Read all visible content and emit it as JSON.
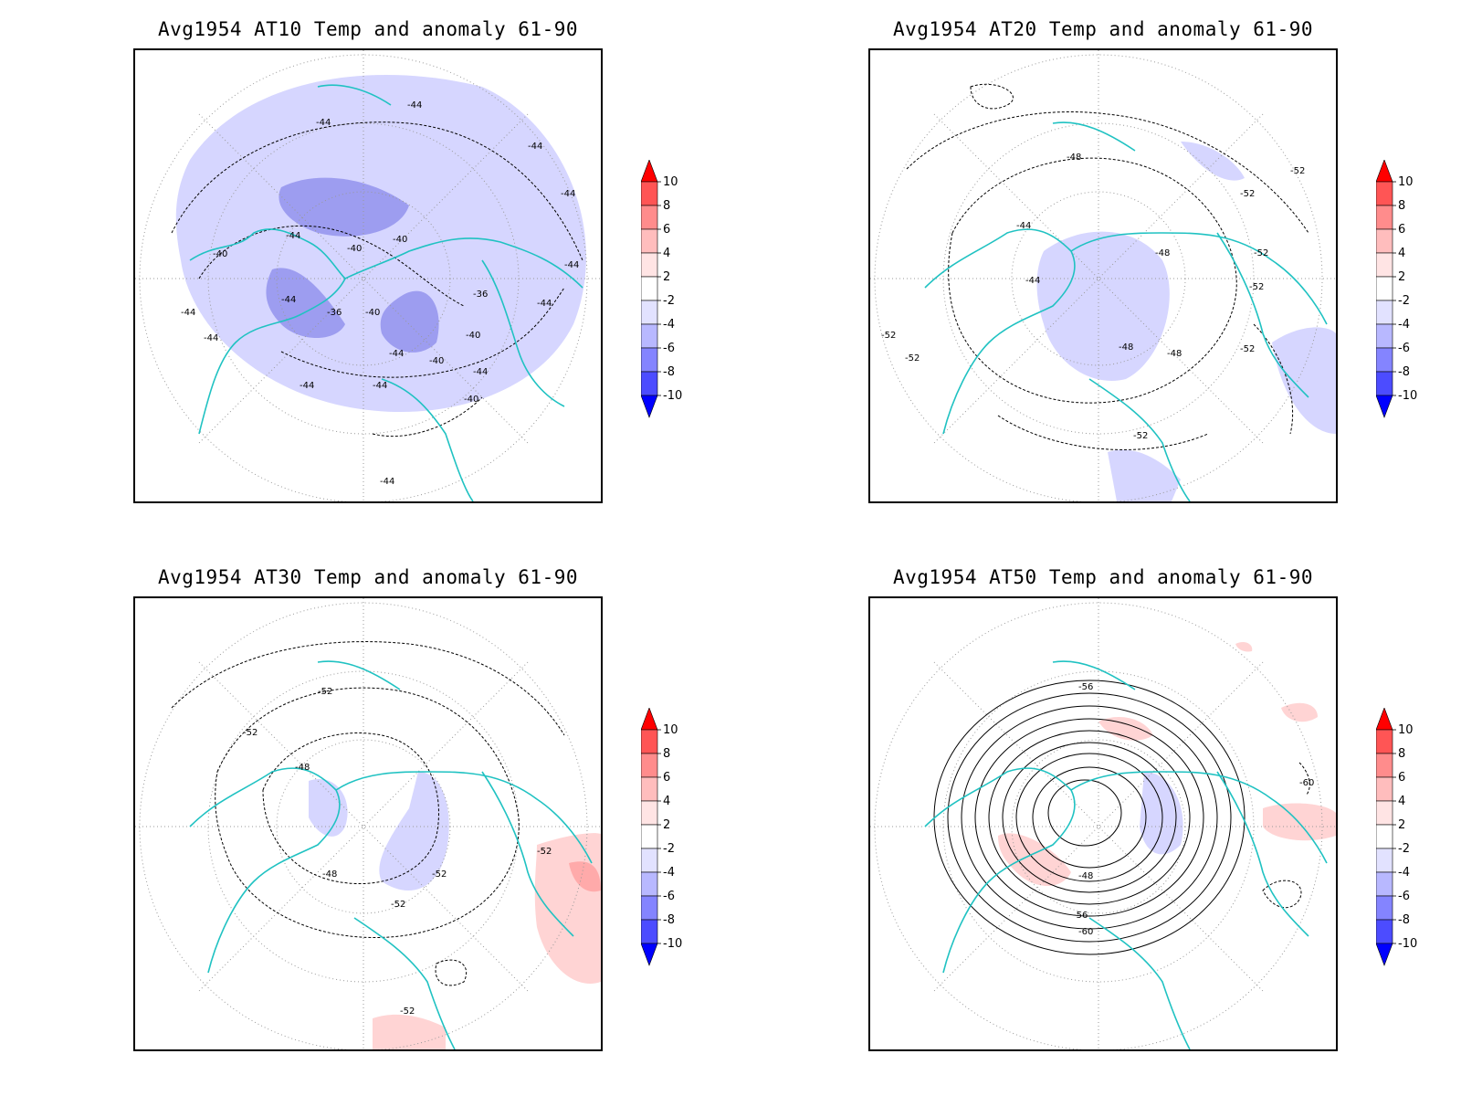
{
  "panels": [
    {
      "title": "Avg1954 AT10 Temp and anomaly 61-90",
      "level": "AT10",
      "anomaly_areas": [
        {
          "sign": "negative",
          "class": "-2 to -4",
          "region": "broad polar cap, North Atlantic, North Pacific, Eurasia"
        },
        {
          "sign": "negative",
          "class": "-4 to -6",
          "region": "Greenland / Canadian Arctic, Scandinavia, Siberia"
        }
      ],
      "contour_labels": [
        "-44",
        "-44",
        "-44",
        "-44",
        "-44",
        "-40",
        "-40",
        "-40",
        "-44",
        "-44",
        "-36",
        "-36",
        "-40",
        "-40",
        "-44",
        "-44",
        "-40",
        "-44",
        "-44",
        "-44",
        "-40",
        "-44",
        "-44",
        "-44"
      ]
    },
    {
      "title": "Avg1954 AT20 Temp and anomaly 61-90",
      "level": "AT20",
      "anomaly_areas": [
        {
          "sign": "negative",
          "class": "-2 to -4",
          "region": "Arctic, northern Europe, North Pacific, Sahara"
        }
      ],
      "contour_labels": [
        "-48",
        "-52",
        "-52",
        "-44",
        "-44",
        "-48",
        "-52",
        "-52",
        "-52",
        "-52",
        "-48",
        "-48",
        "-52",
        "-52"
      ]
    },
    {
      "title": "Avg1954 AT30 Temp and anomaly 61-90",
      "level": "AT30",
      "anomaly_areas": [
        {
          "sign": "negative",
          "class": "-2 to -4",
          "region": "Arctic basin, Scandinavia"
        },
        {
          "sign": "positive",
          "class": "2 to 4",
          "region": "East Asia, equatorial Africa"
        }
      ],
      "contour_labels": [
        "-52",
        "-52",
        "-48",
        "-48",
        "-52",
        "-52",
        "-52",
        "-52"
      ]
    },
    {
      "title": "Avg1954 AT50 Temp and anomaly 61-90",
      "level": "AT50",
      "anomaly_areas": [
        {
          "sign": "positive",
          "class": "2 to 4",
          "region": "Canadian Arctic, East Asia, western Pacific"
        },
        {
          "sign": "negative",
          "class": "-2 to -4",
          "region": "Barents Sea / Siberia"
        }
      ],
      "contour_labels": [
        "-56",
        "-60",
        "-48",
        "-56",
        "-60"
      ]
    }
  ],
  "colorbar": {
    "labels": [
      "10",
      "8",
      "6",
      "4",
      "2",
      "-2",
      "-4",
      "-6",
      "-8",
      "-10"
    ],
    "colors": [
      "#ff0000",
      "#ff5555",
      "#ff8c8c",
      "#ffbdbd",
      "#ffe4e4",
      "#ffffff",
      "#e2e2ff",
      "#b8b8ff",
      "#8484ff",
      "#4c4cff",
      "#0000ff"
    ]
  },
  "colors": {
    "coast": "#20c2c2",
    "contour": "#000000",
    "neg1": "#d6d6ff",
    "neg2": "#9d9df0",
    "pos1": "#ffd4d4",
    "pos2": "#ffaaaa",
    "grid": "#999999"
  }
}
